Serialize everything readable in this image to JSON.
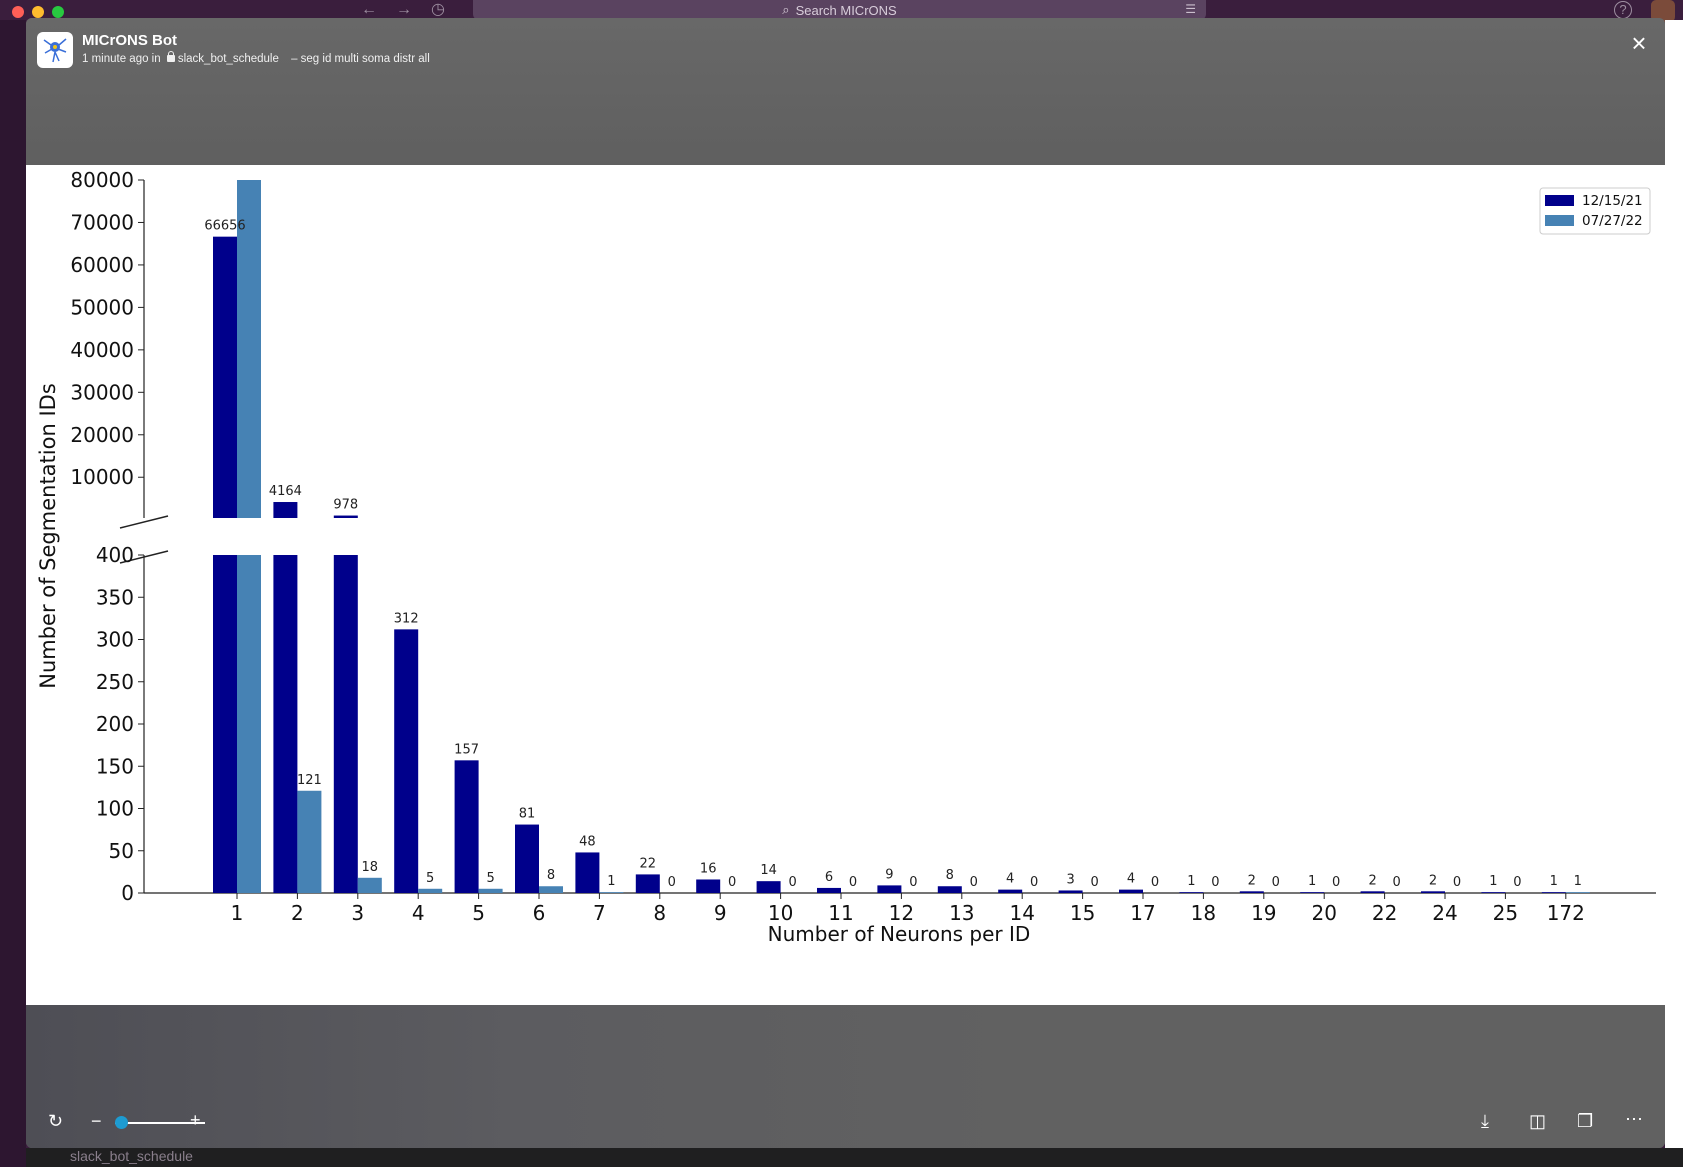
{
  "topbar": {
    "search_placeholder": "Search MICrONS"
  },
  "background": {
    "channel_label": "slack_bot_schedule"
  },
  "message": {
    "bot_name": "MICrONS Bot",
    "time": "1 minute ago in",
    "channel": "slack_bot_schedule",
    "title": "– seg id multi soma distr all"
  },
  "chart_data": {
    "type": "bar",
    "xlabel": "Number of Neurons per ID",
    "ylabel": "Number of Segmentation IDs",
    "broken_axis": true,
    "lower_ylim": [
      0,
      400
    ],
    "upper_ylim": [
      400,
      80000
    ],
    "lower_yticks": [
      0,
      50,
      100,
      150,
      200,
      250,
      300,
      350,
      400
    ],
    "upper_yticks": [
      10000,
      20000,
      30000,
      40000,
      50000,
      60000,
      70000,
      80000
    ],
    "categories": [
      "1",
      "2",
      "3",
      "4",
      "5",
      "6",
      "7",
      "8",
      "9",
      "10",
      "11",
      "12",
      "13",
      "14",
      "15",
      "17",
      "18",
      "19",
      "20",
      "22",
      "24",
      "25",
      "172"
    ],
    "legend_position": "top-right",
    "series": [
      {
        "name": "12/15/21",
        "color": "#00008b",
        "values": [
          66656,
          4164,
          978,
          312,
          157,
          81,
          48,
          22,
          16,
          14,
          6,
          9,
          8,
          4,
          3,
          4,
          1,
          2,
          1,
          2,
          2,
          1,
          1
        ],
        "labels": [
          "66656",
          "4164",
          "978",
          "312",
          "157",
          "81",
          "48",
          "22",
          "16",
          "14",
          "6",
          "9",
          "8",
          "4",
          "3",
          "4",
          "1",
          "2",
          "1",
          "2",
          "2",
          "1",
          "1"
        ]
      },
      {
        "name": "07/27/22",
        "color": "#4682b4",
        "values": [
          80000,
          121,
          18,
          5,
          5,
          8,
          1,
          0,
          0,
          0,
          0,
          0,
          0,
          0,
          0,
          0,
          0,
          0,
          0,
          0,
          0,
          0,
          1
        ],
        "labels": [
          "",
          "121",
          "18",
          "5",
          "5",
          "8",
          "1",
          "0",
          "0",
          "0",
          "0",
          "0",
          "0",
          "0",
          "0",
          "0",
          "0",
          "0",
          "0",
          "0",
          "0",
          "0",
          "1"
        ]
      }
    ]
  }
}
